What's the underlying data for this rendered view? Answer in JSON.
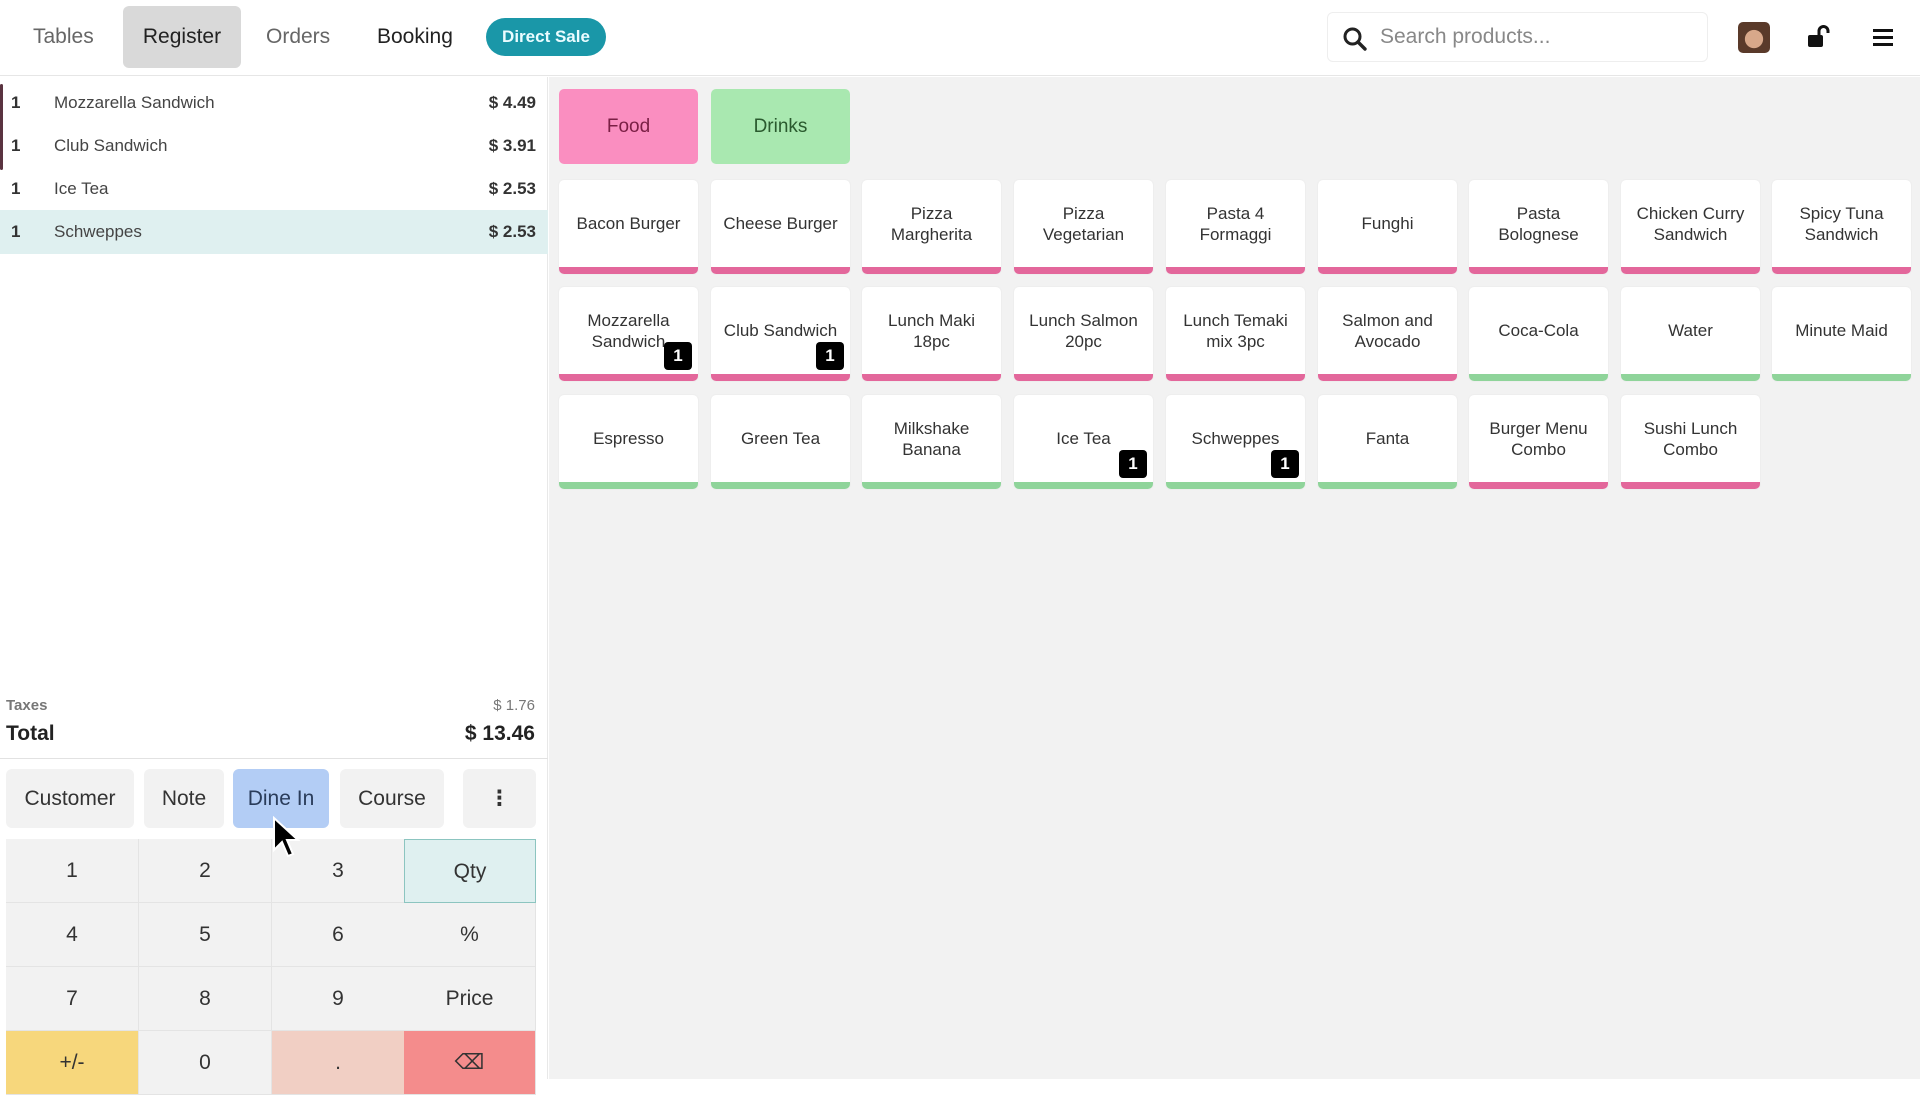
{
  "nav": {
    "tabs": [
      {
        "label": "Tables"
      },
      {
        "label": "Register",
        "active": true
      },
      {
        "label": "Orders"
      },
      {
        "label": "Booking"
      }
    ],
    "direct_sale": "Direct Sale"
  },
  "search": {
    "placeholder": "Search products...",
    "value": ""
  },
  "header_icons": [
    "user-avatar",
    "unlock-icon",
    "hamburger-menu-icon"
  ],
  "order": {
    "lines": [
      {
        "qty": "1",
        "name": "Mozzarella Sandwich",
        "price": "$ 4.49"
      },
      {
        "qty": "1",
        "name": "Club Sandwich",
        "price": "$ 3.91"
      },
      {
        "qty": "1",
        "name": "Ice Tea",
        "price": "$ 2.53"
      },
      {
        "qty": "1",
        "name": "Schweppes",
        "price": "$ 2.53",
        "selected": true
      }
    ],
    "taxes_label": "Taxes",
    "taxes": "$ 1.76",
    "total_label": "Total",
    "total": "$ 13.46"
  },
  "controls": {
    "customer": "Customer",
    "note": "Note",
    "dine_in": "Dine In",
    "course": "Course",
    "more": "⋮"
  },
  "numpad": {
    "keys": [
      "1",
      "2",
      "3",
      "Qty",
      "4",
      "5",
      "6",
      "%",
      "7",
      "8",
      "9",
      "Price",
      "+/-",
      "0",
      ".",
      "⌫"
    ],
    "active_mode": "Qty"
  },
  "categories": [
    {
      "label": "Food",
      "color": "#fa8ec0"
    },
    {
      "label": "Drinks",
      "color": "#a9e8b0"
    }
  ],
  "products": [
    {
      "name": "Bacon Burger",
      "cat": "food"
    },
    {
      "name": "Cheese Burger",
      "cat": "food"
    },
    {
      "name": "Pizza Margherita",
      "cat": "food"
    },
    {
      "name": "Pizza Vegetarian",
      "cat": "food"
    },
    {
      "name": "Pasta 4 Formaggi",
      "cat": "food"
    },
    {
      "name": "Funghi",
      "cat": "food"
    },
    {
      "name": "Pasta Bolognese",
      "cat": "food"
    },
    {
      "name": "Chicken Curry Sandwich",
      "cat": "food"
    },
    {
      "name": "Spicy Tuna Sandwich",
      "cat": "food"
    },
    {
      "name": "Mozzarella Sandwich",
      "cat": "food",
      "badge": "1"
    },
    {
      "name": "Club Sandwich",
      "cat": "food",
      "badge": "1"
    },
    {
      "name": "Lunch Maki 18pc",
      "cat": "food"
    },
    {
      "name": "Lunch Salmon 20pc",
      "cat": "food"
    },
    {
      "name": "Lunch Temaki mix 3pc",
      "cat": "food"
    },
    {
      "name": "Salmon and Avocado",
      "cat": "food"
    },
    {
      "name": "Coca-Cola",
      "cat": "drinks"
    },
    {
      "name": "Water",
      "cat": "drinks"
    },
    {
      "name": "Minute Maid",
      "cat": "drinks"
    },
    {
      "name": "Espresso",
      "cat": "drinks"
    },
    {
      "name": "Green Tea",
      "cat": "drinks"
    },
    {
      "name": "Milkshake Banana",
      "cat": "drinks"
    },
    {
      "name": "Ice Tea",
      "cat": "drinks",
      "badge": "1"
    },
    {
      "name": "Schweppes",
      "cat": "drinks",
      "badge": "1"
    },
    {
      "name": "Fanta",
      "cat": "drinks"
    },
    {
      "name": "Burger Menu Combo",
      "cat": "food"
    },
    {
      "name": "Sushi Lunch Combo",
      "cat": "food"
    }
  ],
  "colors": {
    "accent_teal": "#1a97a8",
    "food_bar": "#e3679b",
    "drinks_bar": "#8fd49a",
    "selected_row": "#dff0f0",
    "dine_in_active": "#b3cdf5"
  }
}
